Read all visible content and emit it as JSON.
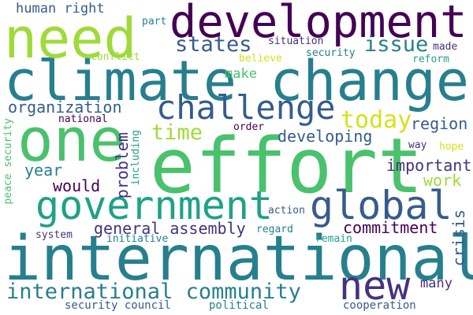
{
  "palette": {
    "purple": "#440154",
    "indigo": "#46327e",
    "blue": "#365c8d",
    "teal": "#277f8e",
    "cyan": "#1fa187",
    "green": "#4ac16d",
    "lime": "#a0da39",
    "yellow": "#d4e21a"
  },
  "words": [
    {
      "text": "climate change"
    },
    {
      "text": "international"
    },
    {
      "text": "effort"
    },
    {
      "text": "development"
    },
    {
      "text": "need"
    },
    {
      "text": "one"
    },
    {
      "text": "government"
    },
    {
      "text": "global"
    },
    {
      "text": "challenge"
    },
    {
      "text": "international community"
    },
    {
      "text": "new"
    },
    {
      "text": "states"
    },
    {
      "text": "issue"
    },
    {
      "text": "today"
    },
    {
      "text": "time"
    },
    {
      "text": "human right"
    },
    {
      "text": "organization"
    },
    {
      "text": "developing"
    },
    {
      "text": "region"
    },
    {
      "text": "general assembly"
    },
    {
      "text": "commitment"
    },
    {
      "text": "important"
    },
    {
      "text": "work"
    },
    {
      "text": "year"
    },
    {
      "text": "would"
    },
    {
      "text": "problem"
    },
    {
      "text": "crisis"
    },
    {
      "text": "make"
    },
    {
      "text": "many"
    },
    {
      "text": "security council"
    },
    {
      "text": "political"
    },
    {
      "text": "cooperation"
    },
    {
      "text": "system"
    },
    {
      "text": "initiative"
    },
    {
      "text": "regard"
    },
    {
      "text": "remain"
    },
    {
      "text": "action"
    },
    {
      "text": "including"
    },
    {
      "text": "peace security"
    },
    {
      "text": "national"
    },
    {
      "text": "order"
    },
    {
      "text": "way"
    },
    {
      "text": "hope"
    },
    {
      "text": "part"
    },
    {
      "text": "situation"
    },
    {
      "text": "made"
    },
    {
      "text": "security"
    },
    {
      "text": "reform"
    },
    {
      "text": "conflict"
    },
    {
      "text": "believe"
    }
  ]
}
